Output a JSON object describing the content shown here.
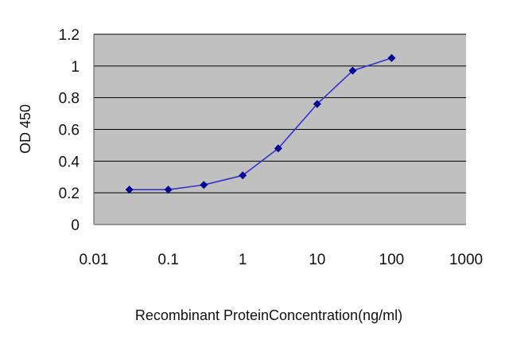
{
  "chart_data": {
    "type": "line",
    "xlabel": "Recombinant ProteinConcentration(ng/ml)",
    "ylabel": "OD 450",
    "x_scale": "log",
    "xlim": [
      0.01,
      1000
    ],
    "ylim": [
      0,
      1.2
    ],
    "x_ticks": [
      "0.01",
      "0.1",
      "1",
      "10",
      "100",
      "1000"
    ],
    "y_ticks": [
      "0",
      "0.2",
      "0.4",
      "0.6",
      "0.8",
      "1",
      "1.2"
    ],
    "grid": "horizontal",
    "series": [
      {
        "x": [
          0.03,
          0.1,
          0.3,
          1,
          3,
          10,
          30,
          100
        ],
        "y": [
          0.22,
          0.22,
          0.25,
          0.31,
          0.48,
          0.76,
          0.97,
          1.05
        ]
      }
    ],
    "colors": {
      "plot_background": "#c0c0c0",
      "line": "#3333cc",
      "marker": "#000099",
      "grid": "#000000"
    }
  }
}
